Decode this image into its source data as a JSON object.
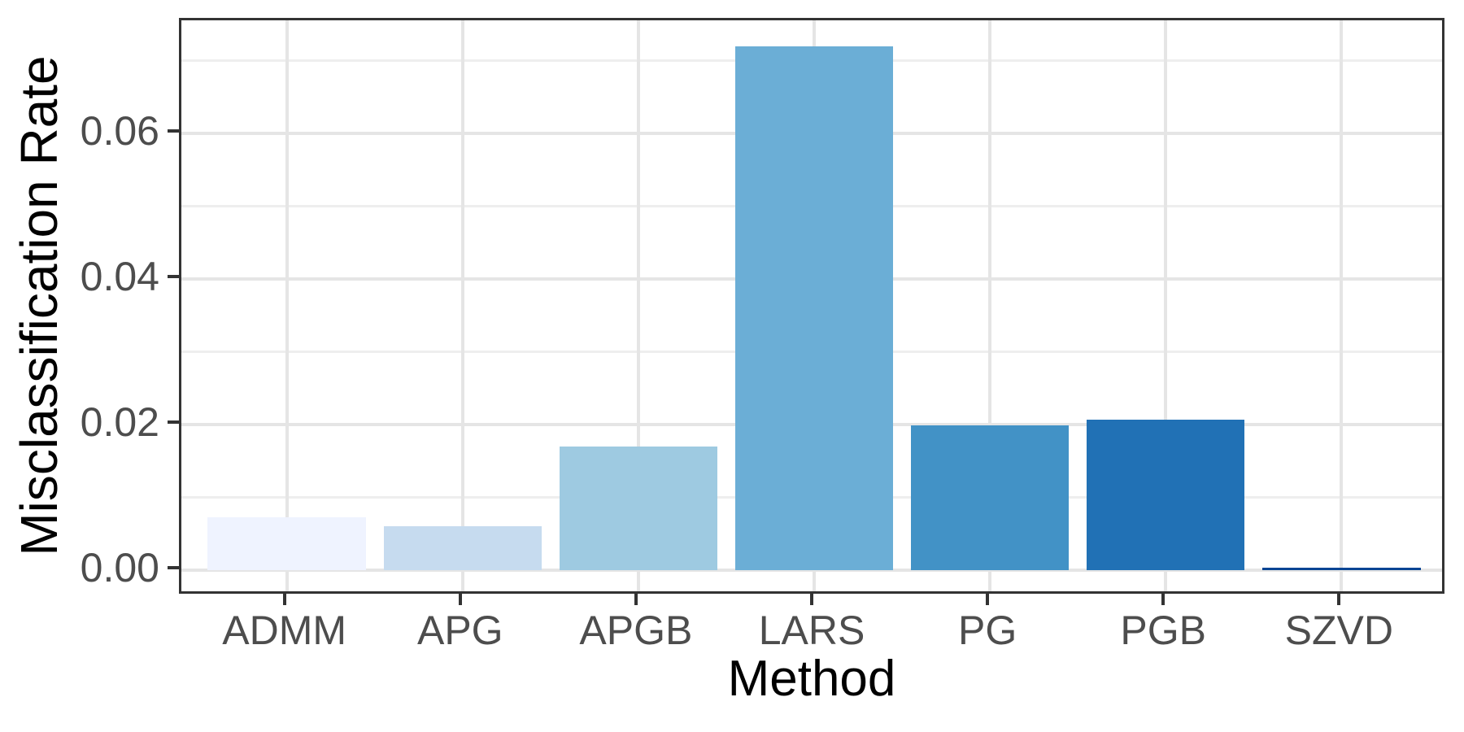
{
  "chart_data": {
    "type": "bar",
    "title": "",
    "xlabel": "Method",
    "ylabel": "Misclassification Rate",
    "categories": [
      "ADMM",
      "APG",
      "APGB",
      "LARS",
      "PG",
      "PGB",
      "SZVD"
    ],
    "values": [
      0.0072,
      0.006,
      0.017,
      0.0719,
      0.0199,
      0.0206,
      0.0003
    ],
    "bar_colors": [
      "#eff3ff",
      "#c6dbef",
      "#9ecae1",
      "#6baed6",
      "#4292c6",
      "#2171b5",
      "#084594"
    ],
    "y_ticks": [
      {
        "value": 0.0,
        "label": "0.00"
      },
      {
        "value": 0.02,
        "label": "0.02"
      },
      {
        "value": 0.04,
        "label": "0.04"
      },
      {
        "value": 0.06,
        "label": "0.06"
      }
    ],
    "y_minor_ticks": [
      0.01,
      0.03,
      0.05,
      0.07
    ],
    "ylim": [
      -0.0036,
      0.0755
    ],
    "grid": "horizontal major+minor, vertical major at categories",
    "legend": "none",
    "style": {
      "panel_border_color": "#333333",
      "grid_major_color": "#e5e5e5",
      "grid_minor_color": "#eeeeee",
      "tick_color": "#333333",
      "tick_label_color": "#4d4d4d",
      "axis_title_color": "#000000",
      "bar_width_fraction": 0.9
    }
  }
}
